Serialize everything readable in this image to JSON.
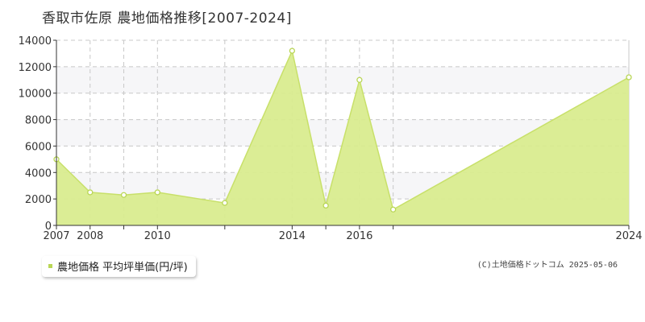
{
  "title": "香取市佐原 農地価格推移[2007-2024]",
  "legend": {
    "label": "農地価格 平均坪単価(円/坪)"
  },
  "copyright": "(C)土地価格ドットコム 2025-05-06",
  "colors": {
    "line": "#c8e06a",
    "fill": "#d9ec8f",
    "marker_fill": "#ffffff",
    "marker_stroke": "#b9d655",
    "grid": "#c8c8c8",
    "band": "#f6f6f8",
    "axis_text": "#333333",
    "legend_swatch": "#b9d655"
  },
  "chart_data": {
    "type": "area",
    "title": "香取市佐原 農地価格推移[2007-2024]",
    "xlabel": "",
    "ylabel": "",
    "x": [
      2007,
      2008,
      2009,
      2010,
      2012,
      2014,
      2015,
      2016,
      2017,
      2024
    ],
    "series": [
      {
        "name": "農地価格 平均坪単価(円/坪)",
        "values": [
          5000,
          2500,
          2300,
          2500,
          1700,
          13200,
          1500,
          11000,
          1200,
          11200
        ]
      }
    ],
    "xlim": [
      2007,
      2024
    ],
    "ylim": [
      0,
      14000
    ],
    "yticks": [
      0,
      2000,
      4000,
      6000,
      8000,
      10000,
      12000,
      14000
    ],
    "xtick_labels": [
      "2007",
      "2008",
      "2010",
      "2014",
      "2016",
      "2024"
    ],
    "grid": true,
    "legend_position": "bottom-left"
  }
}
